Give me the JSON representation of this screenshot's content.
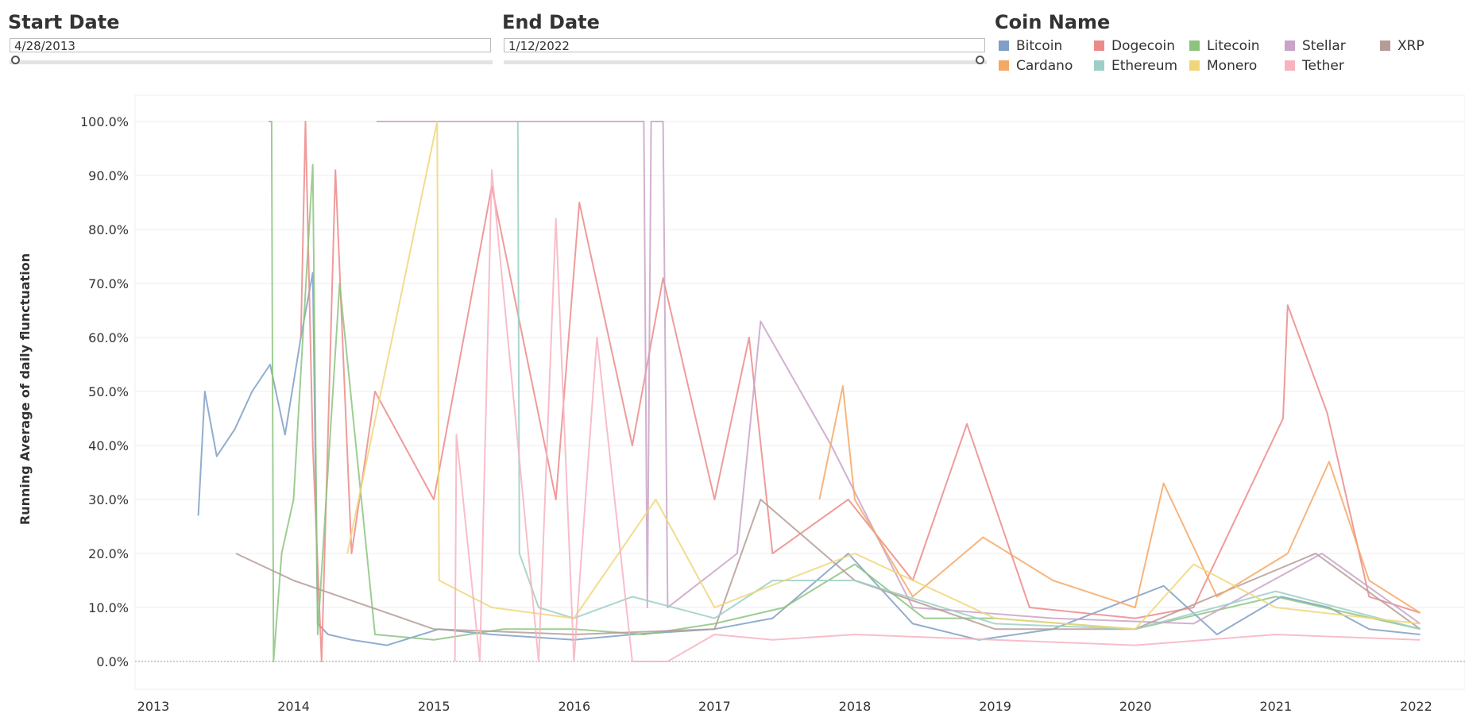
{
  "filters": {
    "start_date": {
      "label": "Start Date",
      "value": "4/28/2013"
    },
    "end_date": {
      "label": "End Date",
      "value": "1/12/2022"
    }
  },
  "legend": {
    "title": "Coin Name",
    "items": [
      {
        "name": "Bitcoin",
        "color": "#7f9fc5"
      },
      {
        "name": "Dogecoin",
        "color": "#ec8a8a"
      },
      {
        "name": "Litecoin",
        "color": "#8cc47f"
      },
      {
        "name": "Stellar",
        "color": "#c9a3c8"
      },
      {
        "name": "XRP",
        "color": "#b59c96"
      },
      {
        "name": "Cardano",
        "color": "#f4a866"
      },
      {
        "name": "Ethereum",
        "color": "#9ccfc6"
      },
      {
        "name": "Monero",
        "color": "#f0d67a"
      },
      {
        "name": "Tether",
        "color": "#f7b3bf"
      }
    ]
  },
  "chart_data": {
    "type": "line",
    "ylabel": "Running Average of daily flunctuation",
    "xlabel": "",
    "x_ticks": [
      "2013",
      "2014",
      "2015",
      "2016",
      "2017",
      "2018",
      "2019",
      "2020",
      "2021",
      "2022"
    ],
    "y_ticks": [
      "0.0%",
      "10.0%",
      "20.0%",
      "30.0%",
      "40.0%",
      "50.0%",
      "60.0%",
      "70.0%",
      "80.0%",
      "90.0%",
      "100.0%"
    ],
    "ylim": [
      -0.05,
      1.0
    ],
    "grid": true,
    "series": [
      {
        "name": "Bitcoin",
        "color": "#7f9fc5",
        "x": [
          "2013-04-28",
          "2013-05-15",
          "2013-06-15",
          "2013-08-01",
          "2013-09-15",
          "2013-11-01",
          "2013-12-10",
          "2014-01-20",
          "2014-02-20",
          "2014-03-05",
          "2014-04-01",
          "2014-06-01",
          "2014-09-01",
          "2015-01-15",
          "2015-06-01",
          "2016-01-01",
          "2016-06-01",
          "2017-01-01",
          "2017-06-01",
          "2017-12-15",
          "2018-06-01",
          "2018-11-20",
          "2019-06-01",
          "2020-03-15",
          "2020-08-01",
          "2021-01-15",
          "2021-05-20",
          "2021-09-01",
          "2022-01-12"
        ],
        "y": [
          0.27,
          0.5,
          0.38,
          0.43,
          0.5,
          0.55,
          0.42,
          0.6,
          0.72,
          0.07,
          0.05,
          0.04,
          0.03,
          0.06,
          0.05,
          0.04,
          0.05,
          0.06,
          0.08,
          0.2,
          0.07,
          0.04,
          0.06,
          0.14,
          0.05,
          0.12,
          0.1,
          0.06,
          0.05
        ]
      },
      {
        "name": "Dogecoin",
        "color": "#ec8a8a",
        "x": [
          "2014-01-20",
          "2014-02-01",
          "2014-02-20",
          "2014-03-15",
          "2014-04-20",
          "2014-06-01",
          "2014-08-01",
          "2015-01-01",
          "2015-06-01",
          "2015-11-15",
          "2016-01-15",
          "2016-06-01",
          "2016-08-20",
          "2017-01-01",
          "2017-04-01",
          "2017-06-01",
          "2017-12-15",
          "2018-06-01",
          "2018-10-20",
          "2019-04-01",
          "2020-01-01",
          "2020-06-01",
          "2021-01-20",
          "2021-02-01",
          "2021-05-15",
          "2021-09-01",
          "2022-01-12"
        ],
        "y": [
          0.6,
          1.0,
          0.4,
          0.0,
          0.91,
          0.2,
          0.5,
          0.3,
          0.88,
          0.3,
          0.85,
          0.4,
          0.71,
          0.3,
          0.6,
          0.2,
          0.3,
          0.15,
          0.44,
          0.1,
          0.08,
          0.1,
          0.45,
          0.66,
          0.46,
          0.12,
          0.09
        ]
      },
      {
        "name": "Litecoin",
        "color": "#8cc47f",
        "x": [
          "2013-10-28",
          "2013-11-05",
          "2013-11-10",
          "2013-12-01",
          "2014-01-01",
          "2014-02-20",
          "2014-03-05",
          "2014-05-01",
          "2014-08-01",
          "2015-01-01",
          "2015-07-01",
          "2016-01-01",
          "2016-07-01",
          "2017-01-01",
          "2017-07-01",
          "2018-01-01",
          "2018-07-01",
          "2019-01-01",
          "2020-01-01",
          "2021-01-01",
          "2022-01-12"
        ],
        "y": [
          1.0,
          1.0,
          0.0,
          0.2,
          0.3,
          0.92,
          0.05,
          0.7,
          0.05,
          0.04,
          0.06,
          0.06,
          0.05,
          0.07,
          0.1,
          0.18,
          0.08,
          0.08,
          0.06,
          0.12,
          0.06
        ]
      },
      {
        "name": "Stellar",
        "color": "#c9a3c8",
        "x": [
          "2014-08-05",
          "2014-09-01",
          "2016-07-01",
          "2016-07-10",
          "2016-07-20",
          "2016-08-20",
          "2016-09-01",
          "2017-03-01",
          "2017-05-01",
          "2017-11-01",
          "2018-06-01",
          "2019-06-01",
          "2020-06-01",
          "2021-05-01",
          "2022-01-12"
        ],
        "y": [
          1.0,
          1.0,
          1.0,
          0.1,
          1.0,
          1.0,
          0.1,
          0.2,
          0.63,
          0.4,
          0.1,
          0.08,
          0.07,
          0.2,
          0.07
        ]
      },
      {
        "name": "XRP",
        "color": "#b59c96",
        "x": [
          "2013-08-04",
          "2014-01-01",
          "2015-01-01",
          "2016-01-01",
          "2017-01-01",
          "2017-05-01",
          "2018-01-01",
          "2019-01-01",
          "2020-01-01",
          "2021-04-15",
          "2022-01-12"
        ],
        "y": [
          0.2,
          0.15,
          0.06,
          0.05,
          0.06,
          0.3,
          0.15,
          0.06,
          0.06,
          0.2,
          0.06
        ]
      },
      {
        "name": "Cardano",
        "color": "#f4a866",
        "x": [
          "2017-10-01",
          "2017-12-01",
          "2018-01-01",
          "2018-06-01",
          "2018-12-01",
          "2019-06-01",
          "2020-01-01",
          "2020-03-15",
          "2020-08-01",
          "2021-02-01",
          "2021-05-20",
          "2021-09-01",
          "2022-01-12"
        ],
        "y": [
          0.3,
          0.51,
          0.3,
          0.12,
          0.23,
          0.15,
          0.1,
          0.33,
          0.12,
          0.2,
          0.37,
          0.15,
          0.09
        ]
      },
      {
        "name": "Ethereum",
        "color": "#9ccfc6",
        "x": [
          "2015-08-08",
          "2015-08-12",
          "2015-10-01",
          "2016-01-01",
          "2016-06-01",
          "2017-01-01",
          "2017-06-01",
          "2018-01-01",
          "2019-01-01",
          "2020-01-01",
          "2021-01-01",
          "2022-01-12"
        ],
        "y": [
          1.0,
          0.2,
          0.1,
          0.08,
          0.12,
          0.08,
          0.15,
          0.15,
          0.07,
          0.06,
          0.13,
          0.06
        ]
      },
      {
        "name": "Monero",
        "color": "#f0d67a",
        "x": [
          "2014-05-21",
          "2015-01-10",
          "2015-01-15",
          "2015-06-01",
          "2016-01-01",
          "2016-08-01",
          "2017-01-01",
          "2018-01-01",
          "2019-01-01",
          "2020-01-01",
          "2020-06-01",
          "2021-01-01",
          "2022-01-12"
        ],
        "y": [
          0.2,
          1.0,
          0.15,
          0.1,
          0.08,
          0.3,
          0.1,
          0.2,
          0.08,
          0.06,
          0.18,
          0.1,
          0.07
        ]
      },
      {
        "name": "Tether",
        "color": "#f7b3bf",
        "x": [
          "2015-02-25",
          "2015-03-01",
          "2015-05-01",
          "2015-06-01",
          "2015-10-01",
          "2015-11-15",
          "2016-01-01",
          "2016-03-01",
          "2016-06-01",
          "2016-09-01",
          "2017-01-01",
          "2017-06-01",
          "2018-01-01",
          "2019-01-01",
          "2020-01-01",
          "2021-01-01",
          "2022-01-12"
        ],
        "y": [
          0.0,
          0.42,
          0.0,
          0.91,
          0.0,
          0.82,
          0.0,
          0.6,
          0.0,
          0.0,
          0.05,
          0.04,
          0.05,
          0.04,
          0.03,
          0.05,
          0.04
        ]
      }
    ]
  }
}
